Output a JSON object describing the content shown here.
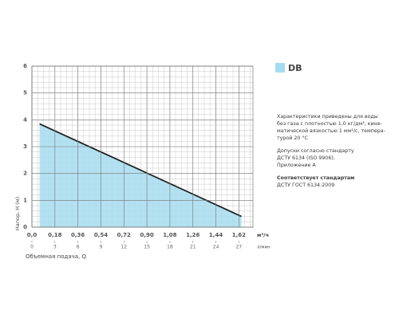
{
  "chart_data": {
    "type": "area",
    "y_label": "Напор, H (м)",
    "x_label": "Объемная подача, Q",
    "x_unit": "м³/ч",
    "x2_unit": "л/мин",
    "x": [
      0.06,
      1.64
    ],
    "series": [
      {
        "name": "DB",
        "color": "#a6dcef",
        "values": [
          3.85,
          0.4
        ]
      }
    ],
    "xlim": [
      0,
      1.73
    ],
    "ylim": [
      0,
      6
    ],
    "xticks": [
      {
        "value": 0,
        "label": "0,0"
      },
      {
        "value": 0.18,
        "label": "0,18"
      },
      {
        "value": 0.36,
        "label": "0,36"
      },
      {
        "value": 0.54,
        "label": "0,54"
      },
      {
        "value": 0.72,
        "label": "0,72"
      },
      {
        "value": 0.9,
        "label": "0,90"
      },
      {
        "value": 1.08,
        "label": "1,08"
      },
      {
        "value": 1.26,
        "label": "1,26"
      },
      {
        "value": 1.44,
        "label": "1,44"
      },
      {
        "value": 1.62,
        "label": "1,62"
      }
    ],
    "x2lim": [
      0,
      28.83
    ],
    "x2ticks": [
      0,
      3,
      6,
      9,
      12,
      15,
      18,
      21,
      24,
      27
    ],
    "yticks": [
      0,
      1,
      2,
      3,
      4,
      5,
      6
    ],
    "grid": true,
    "legend": "top-right"
  },
  "notes": [
    {
      "lines": [
        "Характеристики приведены для воды",
        "без газа с плотностью 1,0 кг/дм³, кине-",
        "матической вязкостью 1 мм²/с, темпера-",
        "турой 20 °C"
      ]
    },
    {
      "lines": [
        "Допуски согласно стандарту",
        "ДСТУ 6134 (ISO 9906),",
        "Приложение А"
      ]
    },
    {
      "heading": "Соответствует стандартам",
      "lines": [
        "ДСТУ ГОСТ 6134:2009"
      ]
    }
  ]
}
